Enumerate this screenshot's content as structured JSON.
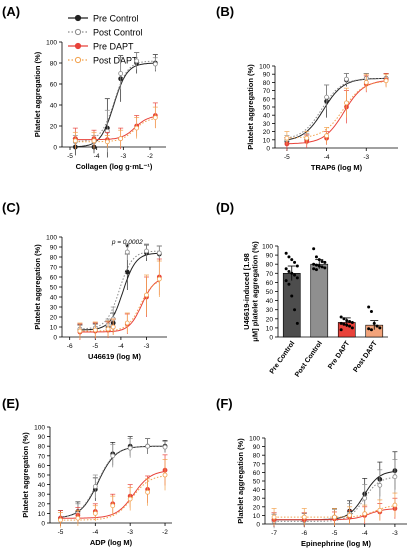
{
  "legend": {
    "entries": [
      {
        "label": "Pre Control",
        "color": "#222222",
        "style": "solid-filled"
      },
      {
        "label": "Post Control",
        "color": "#8a8a8a",
        "style": "dotted-open"
      },
      {
        "label": "Pre DAPT",
        "color": "#e8423a",
        "style": "solid-filled"
      },
      {
        "label": "Post DAPT",
        "color": "#f2a14c",
        "style": "dotted-open"
      }
    ]
  },
  "chart_data": [
    {
      "panel_label": "(A)",
      "type": "line",
      "xlabel": "Collagen (log g·mL⁻¹)",
      "ylabel": "Platelet aggregation (%)",
      "xlim": [
        -5.3,
        -1.4
      ],
      "ylim": [
        0,
        100
      ],
      "xticks": [
        -5,
        -4,
        -3,
        -2
      ],
      "yticks": [
        0,
        20,
        40,
        60,
        80,
        100
      ],
      "annotations": [],
      "series": [
        {
          "name": "Pre Control",
          "x": [
            -4.8,
            -4.1,
            -3.6,
            -3.1,
            -2.5,
            -1.8
          ],
          "y": [
            0,
            0,
            18,
            65,
            80,
            80
          ],
          "err": [
            8,
            6,
            28,
            22,
            10,
            8
          ]
        },
        {
          "name": "Post Control",
          "x": [
            -4.8,
            -4.1,
            -3.6,
            -3.1,
            -2.5,
            -1.8
          ],
          "y": [
            5,
            5,
            15,
            70,
            82,
            79
          ],
          "err": [
            6,
            6,
            20,
            15,
            8,
            6
          ]
        },
        {
          "name": "Pre DAPT",
          "x": [
            -4.8,
            -4.1,
            -3.6,
            -3.1,
            -2.5,
            -1.8
          ],
          "y": [
            8,
            8,
            7,
            8,
            20,
            30
          ],
          "err": [
            10,
            8,
            7,
            10,
            10,
            12
          ]
        },
        {
          "name": "Post DAPT",
          "x": [
            -4.8,
            -4.1,
            -3.6,
            -3.1,
            -2.5,
            -1.8
          ],
          "y": [
            6,
            6,
            5,
            8,
            18,
            28
          ],
          "err": [
            8,
            8,
            6,
            8,
            10,
            10
          ]
        }
      ]
    },
    {
      "panel_label": "(B)",
      "type": "line",
      "xlabel": "TRAP6 (log M)",
      "ylabel": "Platelet aggregation (%)",
      "xlim": [
        -5.3,
        -2.2
      ],
      "ylim": [
        0,
        100
      ],
      "xticks": [
        -5,
        -4,
        -3
      ],
      "yticks": [
        0,
        10,
        20,
        30,
        40,
        50,
        60,
        70,
        80,
        90,
        100
      ],
      "annotations": [],
      "series": [
        {
          "name": "Pre Control",
          "x": [
            -5,
            -4.5,
            -4,
            -3.5,
            -3,
            -2.5
          ],
          "y": [
            8,
            10,
            57,
            83,
            85,
            85
          ],
          "err": [
            5,
            6,
            20,
            8,
            6,
            6
          ]
        },
        {
          "name": "Post Control",
          "x": [
            -5,
            -4.5,
            -4,
            -3.5,
            -3,
            -2.5
          ],
          "y": [
            10,
            12,
            62,
            84,
            85,
            85
          ],
          "err": [
            5,
            6,
            15,
            7,
            6,
            6
          ]
        },
        {
          "name": "Pre DAPT",
          "x": [
            -5,
            -4.5,
            -4,
            -3.5,
            -3,
            -2.5
          ],
          "y": [
            5,
            8,
            12,
            50,
            78,
            83
          ],
          "err": [
            8,
            8,
            8,
            20,
            10,
            8
          ]
        },
        {
          "name": "Post DAPT",
          "x": [
            -5,
            -4.5,
            -4,
            -3.5,
            -3,
            -2.5
          ],
          "y": [
            12,
            12,
            15,
            55,
            80,
            82
          ],
          "err": [
            8,
            8,
            10,
            18,
            10,
            8
          ]
        }
      ]
    },
    {
      "panel_label": "(C)",
      "type": "line",
      "xlabel": "U46619 (log M)",
      "ylabel": "Platelet aggregation (%)",
      "xlim": [
        -6.3,
        -2.2
      ],
      "ylim": [
        0,
        100
      ],
      "xticks": [
        -6,
        -5,
        -4,
        -3
      ],
      "yticks": [
        0,
        10,
        20,
        30,
        40,
        50,
        60,
        70,
        80,
        90,
        100
      ],
      "annotations": [
        {
          "text": "p = 0.0002",
          "x": -3.75,
          "y": 93
        },
        {
          "text": "*",
          "x": -3.75,
          "y": 86
        }
      ],
      "series": [
        {
          "name": "Pre Control",
          "x": [
            -5.6,
            -5,
            -4.5,
            -4.3,
            -3.75,
            -3,
            -2.5
          ],
          "y": [
            7,
            8,
            10,
            14,
            65,
            84,
            83
          ],
          "err": [
            5,
            5,
            6,
            10,
            18,
            8,
            8
          ]
        },
        {
          "name": "Post Control",
          "x": [
            -5.6,
            -5,
            -4.5,
            -4.3,
            -3.75,
            -3,
            -2.5
          ],
          "y": [
            8,
            9,
            12,
            18,
            85,
            86,
            84
          ],
          "err": [
            5,
            5,
            6,
            12,
            8,
            7,
            7
          ]
        },
        {
          "name": "Pre DAPT",
          "x": [
            -5.6,
            -5,
            -4.5,
            -4.3,
            -3.75,
            -3,
            -2.5
          ],
          "y": [
            5,
            6,
            7,
            10,
            13,
            40,
            60
          ],
          "err": [
            8,
            8,
            8,
            8,
            10,
            20,
            18
          ]
        },
        {
          "name": "Post DAPT",
          "x": [
            -5.6,
            -5,
            -4.5,
            -4.3,
            -3.75,
            -3,
            -2.5
          ],
          "y": [
            6,
            7,
            8,
            10,
            14,
            42,
            58
          ],
          "err": [
            8,
            8,
            8,
            8,
            10,
            20,
            18
          ]
        }
      ]
    },
    {
      "panel_label": "(D)",
      "type": "bar",
      "ylabel": "U46619-induced [1.98 μM] platelet aggregation (%)",
      "categories": [
        "Pre Control",
        "Post Control",
        "Pre DAPT",
        "Post DAPT"
      ],
      "values": [
        70,
        80,
        16,
        13
      ],
      "err": [
        8,
        5,
        5,
        5
      ],
      "colors": [
        "#4d4d4d",
        "#8f8f8f",
        "#e8423a",
        "#f2a37a"
      ],
      "ylim": [
        0,
        100
      ],
      "yticks": [
        0,
        10,
        20,
        30,
        40,
        50,
        60,
        70,
        80,
        90,
        100
      ],
      "points": [
        [
          92,
          88,
          85,
          82,
          78,
          75,
          72,
          70,
          68,
          65,
          62,
          58,
          45,
          30,
          15
        ],
        [
          97,
          88,
          85,
          83,
          82,
          80,
          79,
          78,
          77,
          76,
          75,
          74
        ],
        [
          22,
          20,
          18,
          17,
          16,
          15,
          14,
          13,
          12,
          10,
          8
        ],
        [
          33,
          28,
          15,
          12,
          10,
          9,
          8
        ]
      ]
    },
    {
      "panel_label": "(E)",
      "type": "line",
      "xlabel": "ADP (log M)",
      "ylabel": "Platelet aggregation (%)",
      "xlim": [
        -5.3,
        -1.8
      ],
      "ylim": [
        0,
        100
      ],
      "xticks": [
        -5,
        -4,
        -3,
        -2
      ],
      "yticks": [
        0,
        10,
        20,
        30,
        40,
        50,
        60,
        70,
        80,
        90,
        100
      ],
      "annotations": [],
      "series": [
        {
          "name": "Pre Control",
          "x": [
            -5,
            -4.5,
            -4,
            -3.5,
            -3,
            -2.5,
            -2
          ],
          "y": [
            5,
            12,
            35,
            72,
            80,
            80,
            80
          ],
          "err": [
            8,
            10,
            12,
            12,
            10,
            8,
            6
          ]
        },
        {
          "name": "Post Control",
          "x": [
            -5,
            -4.5,
            -4,
            -3.5,
            -3,
            -2.5,
            -2
          ],
          "y": [
            5,
            10,
            38,
            70,
            78,
            80,
            79
          ],
          "err": [
            8,
            10,
            12,
            12,
            10,
            8,
            6
          ]
        },
        {
          "name": "Pre DAPT",
          "x": [
            -5,
            -4.5,
            -4,
            -3.5,
            -3,
            -2.5,
            -2
          ],
          "y": [
            5,
            8,
            12,
            20,
            28,
            35,
            55
          ],
          "err": [
            8,
            8,
            8,
            10,
            12,
            14,
            16
          ]
        },
        {
          "name": "Post DAPT",
          "x": [
            -5,
            -4.5,
            -4,
            -3.5,
            -3,
            -2.5,
            -2
          ],
          "y": [
            3,
            5,
            10,
            18,
            25,
            32,
            50
          ],
          "err": [
            8,
            8,
            8,
            10,
            12,
            14,
            16
          ]
        }
      ]
    },
    {
      "panel_label": "(F)",
      "type": "line",
      "xlabel": "Epinephrine (log M)",
      "ylabel": "Platelet aggregation (%)",
      "xlim": [
        -7.3,
        -2.6
      ],
      "ylim": [
        0,
        100
      ],
      "xticks": [
        -7,
        -6,
        -5,
        -4,
        -3
      ],
      "yticks": [
        0,
        10,
        20,
        30,
        40,
        50,
        60,
        70,
        80,
        90,
        100
      ],
      "annotations": [],
      "series": [
        {
          "name": "Pre Control",
          "x": [
            -7,
            -6,
            -5,
            -4.5,
            -4,
            -3.5,
            -3
          ],
          "y": [
            5,
            5,
            8,
            15,
            35,
            52,
            62
          ],
          "err": [
            8,
            8,
            10,
            12,
            18,
            20,
            22
          ]
        },
        {
          "name": "Post Control",
          "x": [
            -7,
            -6,
            -5,
            -4.5,
            -4,
            -3.5,
            -3
          ],
          "y": [
            3,
            4,
            7,
            12,
            30,
            45,
            55
          ],
          "err": [
            8,
            8,
            10,
            12,
            16,
            18,
            20
          ]
        },
        {
          "name": "Pre DAPT",
          "x": [
            -7,
            -6,
            -5,
            -4.5,
            -4,
            -3.5,
            -3
          ],
          "y": [
            5,
            5,
            6,
            8,
            10,
            14,
            18
          ],
          "err": [
            8,
            8,
            8,
            8,
            10,
            10,
            12
          ]
        },
        {
          "name": "Post DAPT",
          "x": [
            -7,
            -6,
            -5,
            -4.5,
            -4,
            -3.5,
            -3
          ],
          "y": [
            8,
            8,
            8,
            10,
            12,
            16,
            22
          ],
          "err": [
            10,
            10,
            10,
            10,
            10,
            12,
            14
          ]
        }
      ]
    }
  ]
}
